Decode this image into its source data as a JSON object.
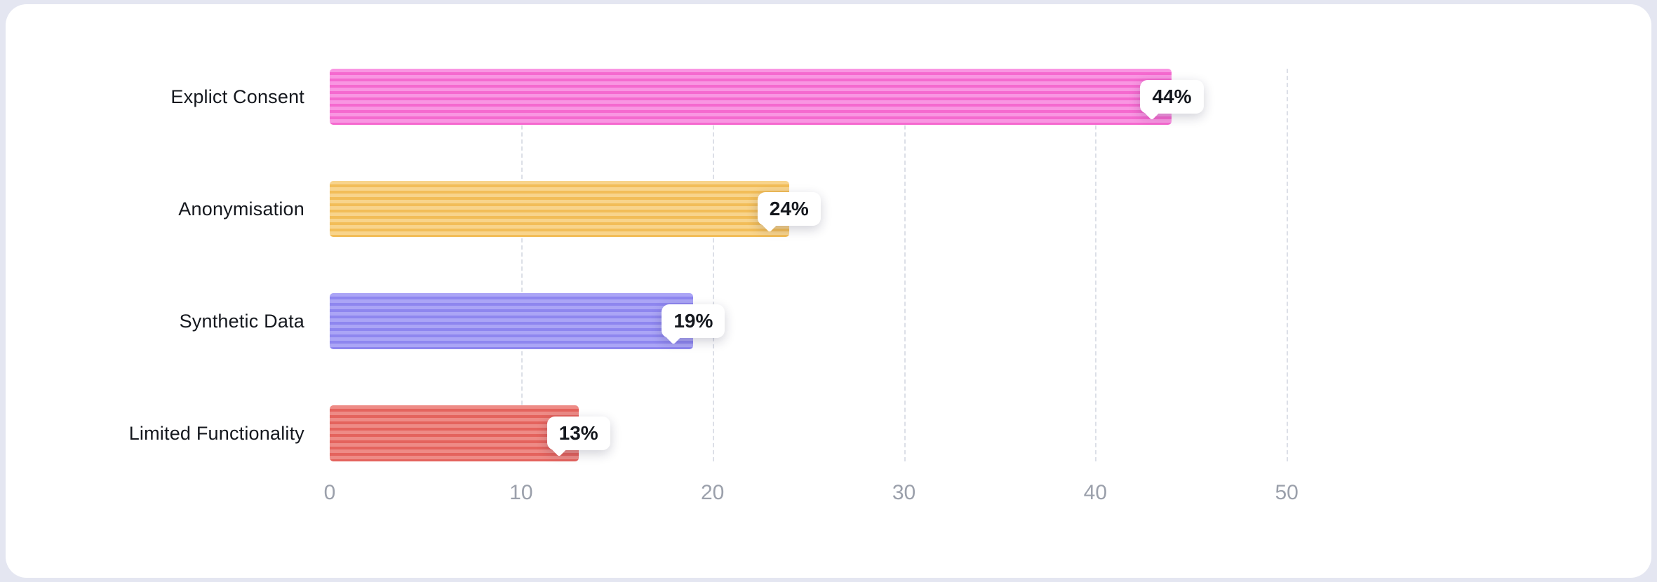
{
  "chart_data": {
    "type": "bar",
    "orientation": "horizontal",
    "title": "",
    "xlabel": "",
    "ylabel": "",
    "categories": [
      "Explict Consent",
      "Anonymisation",
      "Synthetic Data",
      "Limited Functionality"
    ],
    "values": [
      44,
      24,
      19,
      13
    ],
    "value_labels": [
      "44%",
      "24%",
      "19%",
      "13%"
    ],
    "xlim": [
      0,
      50
    ],
    "x_ticks": [
      "0",
      "10",
      "20",
      "30",
      "40",
      "50"
    ],
    "grid": "vertical-dashed",
    "legend_position": "none",
    "bar_style": "horizontal-stripes",
    "bar_colors": [
      {
        "series": "Explict Consent",
        "base": "#f996e2",
        "stripe": "#f569cf"
      },
      {
        "series": "Anonymisation",
        "base": "#f8d48c",
        "stripe": "#f2bd58"
      },
      {
        "series": "Synthetic Data",
        "base": "#aba5f6",
        "stripe": "#8e86ef"
      },
      {
        "series": "Limited Functionality",
        "base": "#ee8b86",
        "stripe": "#e4635d"
      }
    ]
  },
  "ui": {
    "page_background": "#e4e6f1",
    "card_background": "#ffffff",
    "gridline_color": "#dcdfe7",
    "tick_label_color": "#9ba0ab",
    "category_label_color": "#15181e",
    "badge_background": "#ffffff",
    "badge_text_color": "#15181e"
  }
}
